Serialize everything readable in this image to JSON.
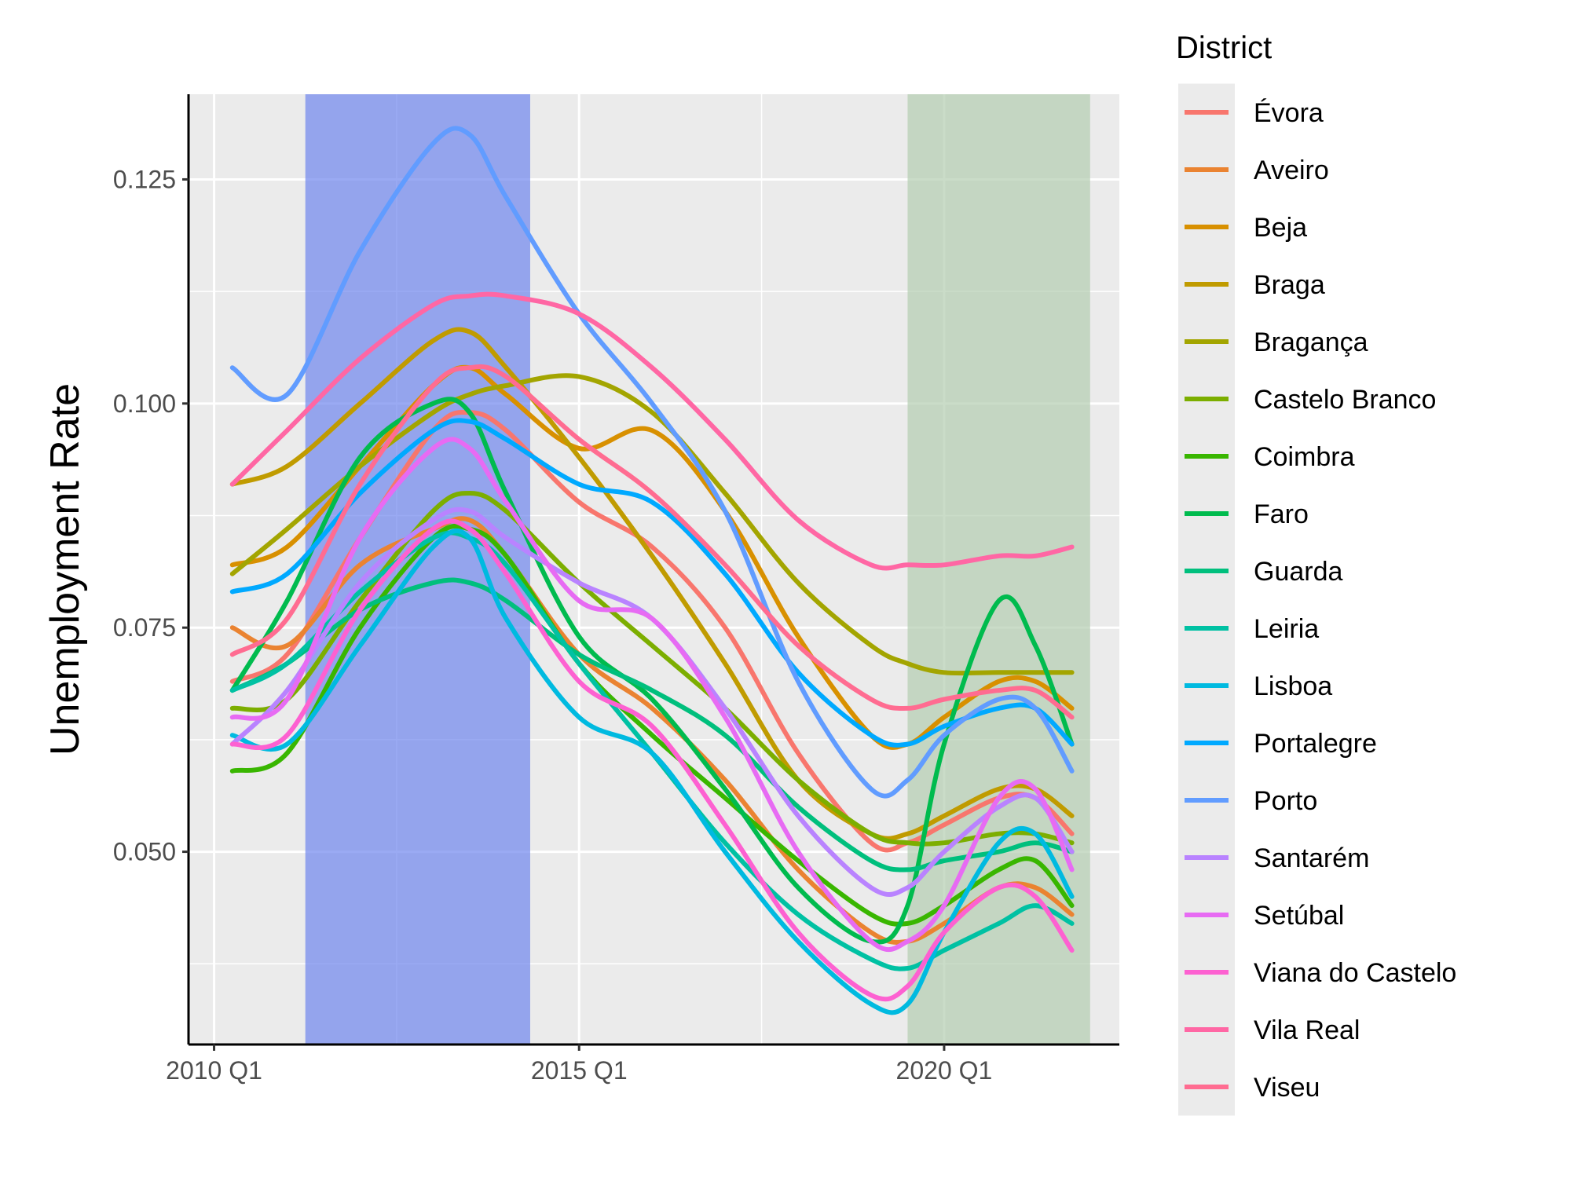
{
  "chart_data": {
    "type": "line",
    "title": "",
    "xlabel": "",
    "ylabel": "Unemployment Rate",
    "x_ticks": [
      "2010 Q1",
      "2015 Q1",
      "2020 Q1"
    ],
    "y_ticks": [
      "0.050",
      "0.075",
      "0.100",
      "0.125"
    ],
    "y_tick_values": [
      0.05,
      0.075,
      0.1,
      0.125
    ],
    "xlim": [
      2009.65,
      2022.4
    ],
    "ylim": [
      0.0285,
      0.1345
    ],
    "x": [
      2010.25,
      2011.0,
      2012.0,
      2013.0,
      2013.5,
      2014.0,
      2015.0,
      2016.0,
      2017.0,
      2018.0,
      2019.0,
      2019.5,
      2020.0,
      2020.75,
      2021.25,
      2021.75
    ],
    "shaded_regions": [
      {
        "x_start": 2011.25,
        "x_end": 2014.33,
        "color": "#6f86ee"
      },
      {
        "x_start": 2019.5,
        "x_end": 2022.0,
        "color": "#b3cdb0"
      }
    ],
    "grid": true,
    "legend": {
      "title": "District",
      "position": "right"
    },
    "series": [
      {
        "name": "Évora",
        "color": "#F8766D",
        "values": [
          0.069,
          0.072,
          0.085,
          0.097,
          0.099,
          0.097,
          0.089,
          0.084,
          0.075,
          0.061,
          0.051,
          0.051,
          0.053,
          0.056,
          0.056,
          0.052
        ]
      },
      {
        "name": "Aveiro",
        "color": "#EA8331",
        "values": [
          0.075,
          0.073,
          0.082,
          0.086,
          0.087,
          0.083,
          0.072,
          0.066,
          0.058,
          0.048,
          0.041,
          0.04,
          0.042,
          0.046,
          0.046,
          0.043
        ]
      },
      {
        "name": "Beja",
        "color": "#D89000",
        "values": [
          0.082,
          0.084,
          0.093,
          0.102,
          0.104,
          0.101,
          0.095,
          0.097,
          0.088,
          0.074,
          0.063,
          0.062,
          0.065,
          0.069,
          0.069,
          0.066
        ]
      },
      {
        "name": "Braga",
        "color": "#C09B00",
        "values": [
          0.091,
          0.093,
          0.1,
          0.107,
          0.108,
          0.104,
          0.094,
          0.083,
          0.071,
          0.058,
          0.052,
          0.052,
          0.054,
          0.057,
          0.057,
          0.054
        ]
      },
      {
        "name": "Bragança",
        "color": "#A3A500",
        "values": [
          0.081,
          0.086,
          0.093,
          0.099,
          0.101,
          0.102,
          0.103,
          0.099,
          0.09,
          0.08,
          0.073,
          0.071,
          0.07,
          0.07,
          0.07,
          0.07
        ]
      },
      {
        "name": "Castelo Branco",
        "color": "#7CAE00",
        "values": [
          0.066,
          0.067,
          0.078,
          0.088,
          0.09,
          0.088,
          0.08,
          0.073,
          0.066,
          0.058,
          0.052,
          0.051,
          0.051,
          0.052,
          0.052,
          0.051
        ]
      },
      {
        "name": "Coimbra",
        "color": "#39B600",
        "values": [
          0.059,
          0.061,
          0.075,
          0.085,
          0.086,
          0.083,
          0.071,
          0.063,
          0.056,
          0.049,
          0.043,
          0.042,
          0.044,
          0.048,
          0.049,
          0.044
        ]
      },
      {
        "name": "Faro",
        "color": "#00BB4E",
        "values": [
          0.068,
          0.078,
          0.094,
          0.1,
          0.099,
          0.09,
          0.074,
          0.067,
          0.057,
          0.046,
          0.04,
          0.044,
          0.062,
          0.078,
          0.073,
          0.062
        ]
      },
      {
        "name": "Guarda",
        "color": "#00BF7D",
        "values": [
          0.068,
          0.071,
          0.077,
          0.08,
          0.08,
          0.078,
          0.072,
          0.068,
          0.063,
          0.055,
          0.049,
          0.048,
          0.049,
          0.05,
          0.051,
          0.05
        ]
      },
      {
        "name": "Leiria",
        "color": "#00C1A3",
        "values": [
          0.068,
          0.071,
          0.079,
          0.085,
          0.085,
          0.082,
          0.071,
          0.061,
          0.051,
          0.043,
          0.038,
          0.037,
          0.039,
          0.042,
          0.044,
          0.042
        ]
      },
      {
        "name": "Lisboa",
        "color": "#00BAE0",
        "values": [
          0.063,
          0.062,
          0.073,
          0.084,
          0.085,
          0.076,
          0.065,
          0.061,
          0.05,
          0.04,
          0.033,
          0.033,
          0.041,
          0.051,
          0.052,
          0.045
        ]
      },
      {
        "name": "Portalegre",
        "color": "#00A9FF",
        "values": [
          0.079,
          0.081,
          0.09,
          0.097,
          0.098,
          0.096,
          0.091,
          0.089,
          0.081,
          0.07,
          0.063,
          0.062,
          0.064,
          0.066,
          0.066,
          0.062
        ]
      },
      {
        "name": "Porto",
        "color": "#619CFF",
        "values": [
          0.104,
          0.101,
          0.117,
          0.129,
          0.13,
          0.123,
          0.11,
          0.1,
          0.088,
          0.069,
          0.057,
          0.058,
          0.063,
          0.067,
          0.066,
          0.059
        ]
      },
      {
        "name": "Santarém",
        "color": "#B983FF",
        "values": [
          0.062,
          0.068,
          0.08,
          0.087,
          0.088,
          0.085,
          0.08,
          0.076,
          0.066,
          0.054,
          0.046,
          0.046,
          0.05,
          0.055,
          0.056,
          0.05
        ]
      },
      {
        "name": "Setúbal",
        "color": "#E76BF3",
        "values": [
          0.065,
          0.067,
          0.085,
          0.095,
          0.095,
          0.089,
          0.078,
          0.076,
          0.065,
          0.05,
          0.04,
          0.04,
          0.044,
          0.056,
          0.057,
          0.048
        ]
      },
      {
        "name": "Viana do Castelo",
        "color": "#FD61D1",
        "values": [
          0.062,
          0.063,
          0.077,
          0.086,
          0.086,
          0.081,
          0.069,
          0.064,
          0.053,
          0.041,
          0.034,
          0.035,
          0.041,
          0.046,
          0.045,
          0.039
        ]
      },
      {
        "name": "Vila Real",
        "color": "#FF67A4",
        "values": [
          0.091,
          0.097,
          0.105,
          0.111,
          0.112,
          0.112,
          0.11,
          0.104,
          0.096,
          0.087,
          0.082,
          0.082,
          0.082,
          0.083,
          0.083,
          0.084
        ]
      },
      {
        "name": "Viseu",
        "color": "#FF6C91",
        "values": [
          0.072,
          0.076,
          0.091,
          0.102,
          0.104,
          0.103,
          0.096,
          0.09,
          0.082,
          0.073,
          0.067,
          0.066,
          0.067,
          0.068,
          0.068,
          0.065
        ]
      }
    ]
  }
}
